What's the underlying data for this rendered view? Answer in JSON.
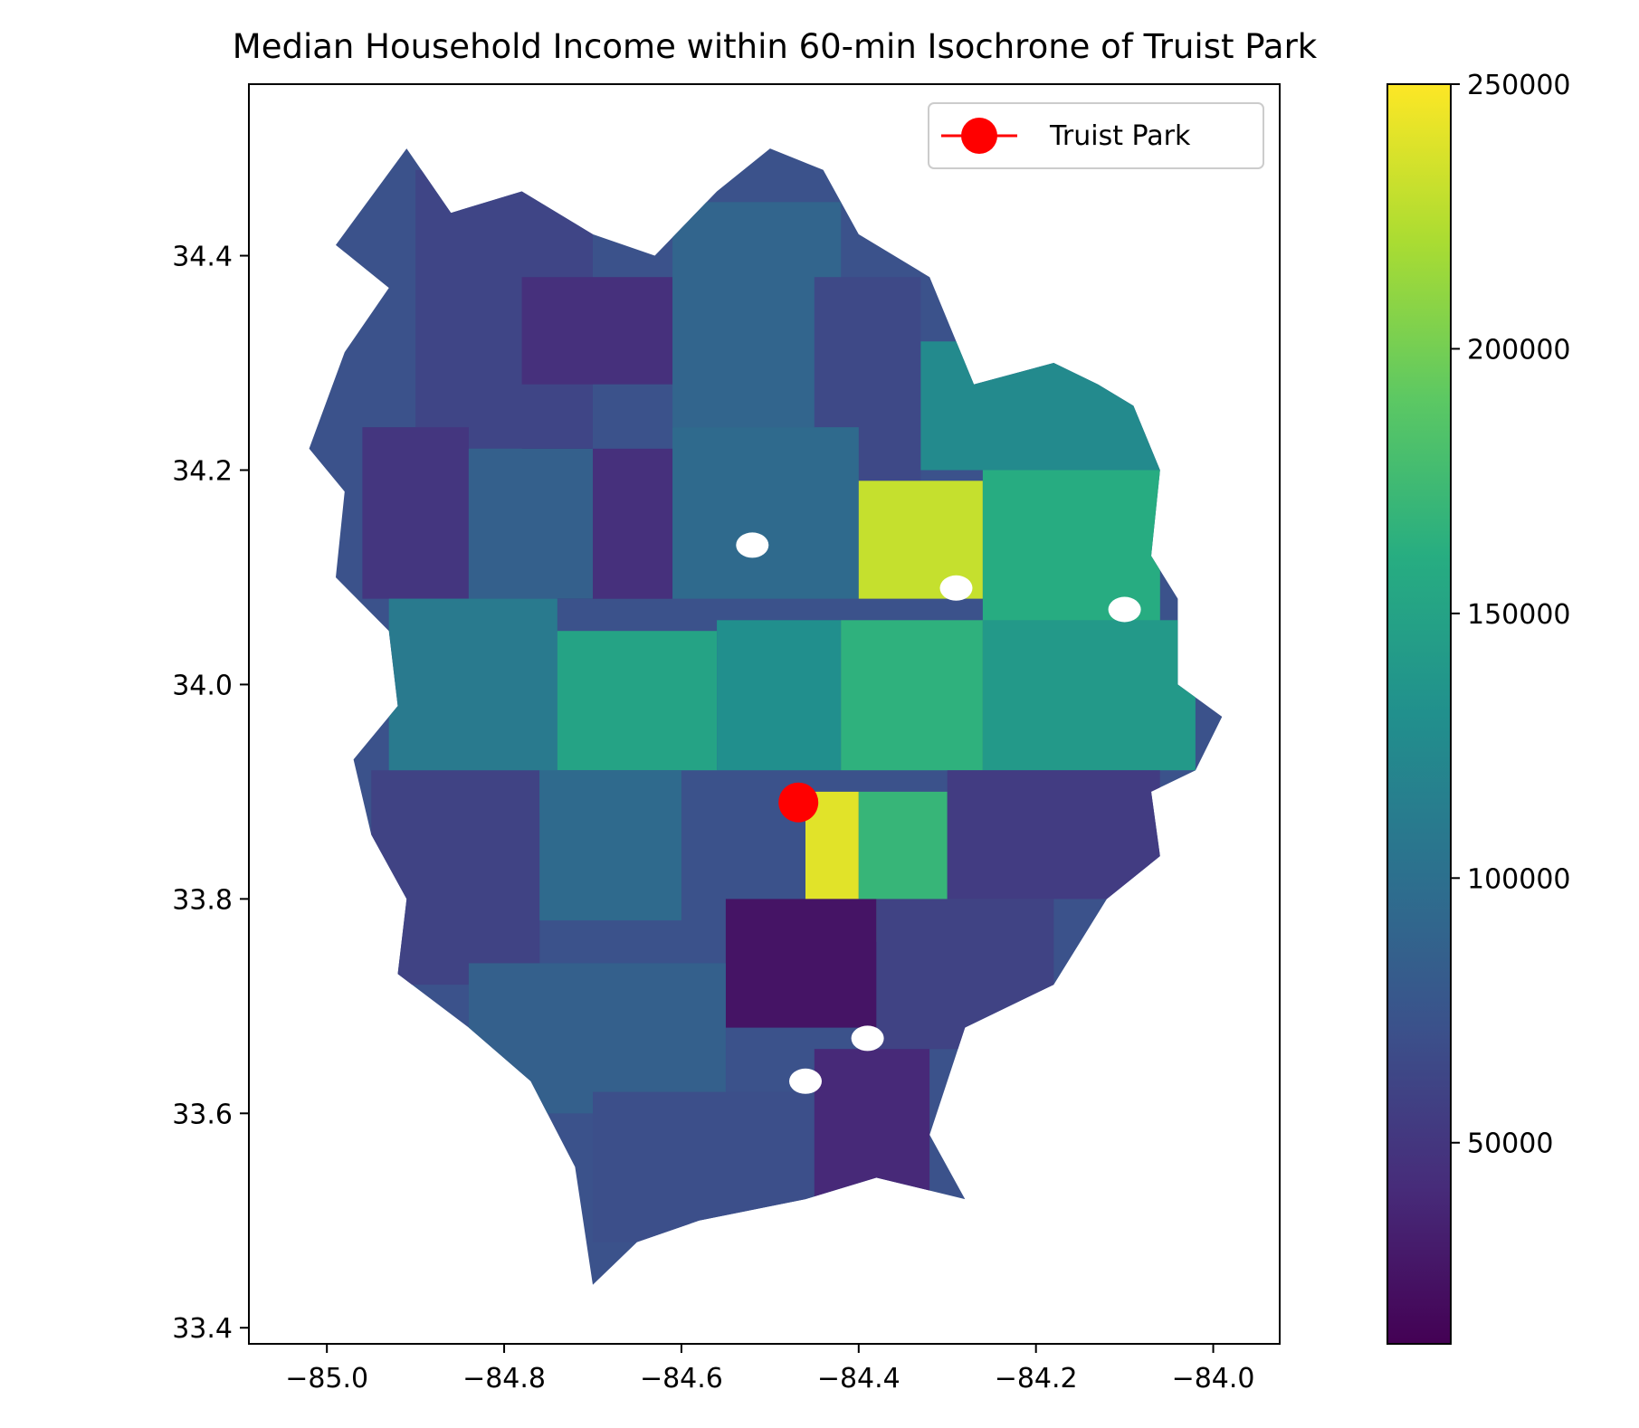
{
  "chart_data": {
    "type": "choropleth-map",
    "title": "Median Household Income within 60-min Isochrone of Truist Park",
    "xlabel": "",
    "ylabel": "",
    "xlim": [
      -85.088,
      -83.925
    ],
    "ylim": [
      33.385,
      34.56
    ],
    "x_ticks": [
      {
        "value": -85.0,
        "label": "−85.0"
      },
      {
        "value": -84.8,
        "label": "−84.8"
      },
      {
        "value": -84.6,
        "label": "−84.6"
      },
      {
        "value": -84.4,
        "label": "−84.4"
      },
      {
        "value": -84.2,
        "label": "−84.2"
      },
      {
        "value": -84.0,
        "label": "−84.0"
      }
    ],
    "y_ticks": [
      {
        "value": 33.4,
        "label": "33.4"
      },
      {
        "value": 33.6,
        "label": "33.6"
      },
      {
        "value": 33.8,
        "label": "33.8"
      },
      {
        "value": 34.0,
        "label": "34.0"
      },
      {
        "value": 34.2,
        "label": "34.2"
      },
      {
        "value": 34.4,
        "label": "34.4"
      }
    ],
    "colorbar": {
      "colormap": "viridis",
      "min": 12000,
      "max": 250000,
      "ticks": [
        {
          "value": 50000,
          "label": "50000"
        },
        {
          "value": 100000,
          "label": "100000"
        },
        {
          "value": 150000,
          "label": "150000"
        },
        {
          "value": 200000,
          "label": "200000"
        },
        {
          "value": 250000,
          "label": "250000"
        }
      ]
    },
    "marker": {
      "label": "Truist Park",
      "lon": -84.468,
      "lat": 33.89,
      "color": "#ff0000"
    },
    "legend": {
      "location": "upper right",
      "entries": [
        "Truist Park"
      ]
    },
    "isochrone_outline": [
      [
        -84.91,
        34.5
      ],
      [
        -84.86,
        34.44
      ],
      [
        -84.78,
        34.46
      ],
      [
        -84.7,
        34.42
      ],
      [
        -84.63,
        34.4
      ],
      [
        -84.56,
        34.46
      ],
      [
        -84.5,
        34.5
      ],
      [
        -84.44,
        34.48
      ],
      [
        -84.4,
        34.42
      ],
      [
        -84.32,
        34.38
      ],
      [
        -84.27,
        34.28
      ],
      [
        -84.18,
        34.3
      ],
      [
        -84.13,
        34.28
      ],
      [
        -84.09,
        34.26
      ],
      [
        -84.06,
        34.2
      ],
      [
        -84.07,
        34.12
      ],
      [
        -84.04,
        34.08
      ],
      [
        -84.04,
        34.0
      ],
      [
        -83.99,
        33.97
      ],
      [
        -84.02,
        33.92
      ],
      [
        -84.07,
        33.9
      ],
      [
        -84.06,
        33.84
      ],
      [
        -84.12,
        33.8
      ],
      [
        -84.18,
        33.72
      ],
      [
        -84.28,
        33.68
      ],
      [
        -84.32,
        33.58
      ],
      [
        -84.28,
        33.52
      ],
      [
        -84.38,
        33.54
      ],
      [
        -84.46,
        33.52
      ],
      [
        -84.58,
        33.5
      ],
      [
        -84.65,
        33.48
      ],
      [
        -84.7,
        33.44
      ],
      [
        -84.72,
        33.55
      ],
      [
        -84.77,
        33.63
      ],
      [
        -84.84,
        33.68
      ],
      [
        -84.92,
        33.73
      ],
      [
        -84.91,
        33.8
      ],
      [
        -84.95,
        33.86
      ],
      [
        -84.97,
        33.93
      ],
      [
        -84.92,
        33.98
      ],
      [
        -84.93,
        34.05
      ],
      [
        -84.99,
        34.1
      ],
      [
        -84.98,
        34.18
      ],
      [
        -85.02,
        34.22
      ],
      [
        -84.98,
        34.31
      ],
      [
        -84.93,
        34.37
      ],
      [
        -84.99,
        34.41
      ]
    ],
    "regions": [
      {
        "lon_range": [
          -84.9,
          -84.7
        ],
        "lat_range": [
          34.22,
          34.48
        ],
        "median_income": 62000
      },
      {
        "lon_range": [
          -84.78,
          -84.61
        ],
        "lat_range": [
          34.28,
          34.38
        ],
        "median_income": 45000
      },
      {
        "lon_range": [
          -84.61,
          -84.42
        ],
        "lat_range": [
          34.24,
          34.45
        ],
        "median_income": 90000
      },
      {
        "lon_range": [
          -84.45,
          -84.33
        ],
        "lat_range": [
          34.18,
          34.38
        ],
        "median_income": 65000
      },
      {
        "lon_range": [
          -84.33,
          -84.06
        ],
        "lat_range": [
          34.2,
          34.32
        ],
        "median_income": 125000
      },
      {
        "lon_range": [
          -84.78,
          -84.7
        ],
        "lat_range": [
          34.08,
          34.22
        ],
        "median_income": 30000
      },
      {
        "lon_range": [
          -84.96,
          -84.84
        ],
        "lat_range": [
          34.08,
          34.24
        ],
        "median_income": 50000
      },
      {
        "lon_range": [
          -84.84,
          -84.7
        ],
        "lat_range": [
          34.08,
          34.22
        ],
        "median_income": 85000
      },
      {
        "lon_range": [
          -84.7,
          -84.61
        ],
        "lat_range": [
          34.08,
          34.22
        ],
        "median_income": 45000
      },
      {
        "lon_range": [
          -84.61,
          -84.4
        ],
        "lat_range": [
          34.08,
          34.24
        ],
        "median_income": 95000
      },
      {
        "lon_range": [
          -84.4,
          -84.26
        ],
        "lat_range": [
          34.08,
          34.19
        ],
        "median_income": 230000
      },
      {
        "lon_range": [
          -84.26,
          -84.06
        ],
        "lat_range": [
          34.05,
          34.2
        ],
        "median_income": 160000
      },
      {
        "lon_range": [
          -84.93,
          -84.74
        ],
        "lat_range": [
          33.88,
          34.08
        ],
        "median_income": 110000
      },
      {
        "lon_range": [
          -84.74,
          -84.56
        ],
        "lat_range": [
          33.92,
          34.05
        ],
        "median_income": 150000
      },
      {
        "lon_range": [
          -84.56,
          -84.42
        ],
        "lat_range": [
          33.92,
          34.06
        ],
        "median_income": 130000
      },
      {
        "lon_range": [
          -84.42,
          -84.26
        ],
        "lat_range": [
          33.92,
          34.06
        ],
        "median_income": 165000
      },
      {
        "lon_range": [
          -84.26,
          -84.02
        ],
        "lat_range": [
          33.92,
          34.06
        ],
        "median_income": 140000
      },
      {
        "lon_range": [
          -84.95,
          -84.76
        ],
        "lat_range": [
          33.72,
          33.92
        ],
        "median_income": 60000
      },
      {
        "lon_range": [
          -84.76,
          -84.6
        ],
        "lat_range": [
          33.78,
          33.92
        ],
        "median_income": 95000
      },
      {
        "lon_range": [
          -84.46,
          -84.4
        ],
        "lat_range": [
          33.8,
          33.9
        ],
        "median_income": 240000
      },
      {
        "lon_range": [
          -84.4,
          -84.3
        ],
        "lat_range": [
          33.76,
          33.9
        ],
        "median_income": 170000
      },
      {
        "lon_range": [
          -84.3,
          -84.06
        ],
        "lat_range": [
          33.8,
          33.92
        ],
        "median_income": 55000
      },
      {
        "lon_range": [
          -84.55,
          -84.38
        ],
        "lat_range": [
          33.68,
          33.8
        ],
        "median_income": 25000
      },
      {
        "lon_range": [
          -84.38,
          -84.18
        ],
        "lat_range": [
          33.66,
          33.8
        ],
        "median_income": 60000
      },
      {
        "lon_range": [
          -84.84,
          -84.55
        ],
        "lat_range": [
          33.6,
          33.74
        ],
        "median_income": 85000
      },
      {
        "lon_range": [
          -84.7,
          -84.45
        ],
        "lat_range": [
          33.48,
          33.62
        ],
        "median_income": 70000
      },
      {
        "lon_range": [
          -84.45,
          -84.32
        ],
        "lat_range": [
          33.52,
          33.66
        ],
        "median_income": 40000
      }
    ],
    "unfilled_holes": [
      {
        "lon": -84.52,
        "lat": 34.13
      },
      {
        "lon": -84.29,
        "lat": 34.09
      },
      {
        "lon": -84.39,
        "lat": 33.67
      },
      {
        "lon": -84.46,
        "lat": 33.63
      },
      {
        "lon": -84.1,
        "lat": 34.07
      }
    ]
  }
}
